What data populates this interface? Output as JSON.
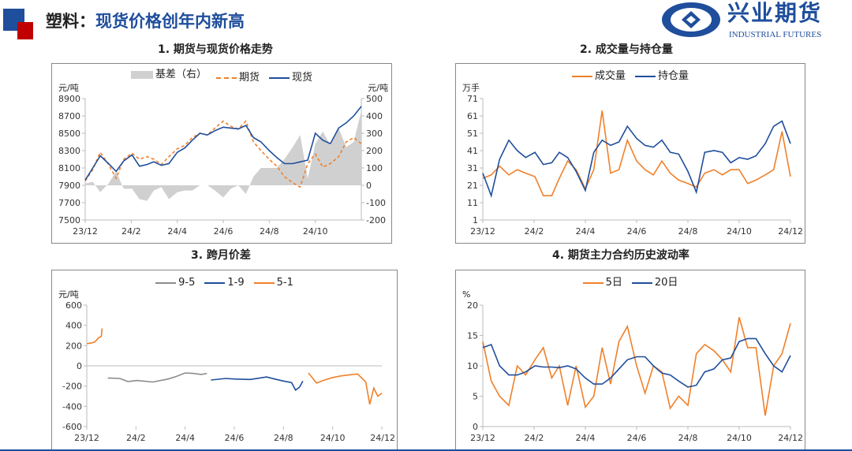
{
  "header": {
    "title_prefix": "塑料：",
    "title_main": "现货价格创年内新高"
  },
  "logo": {
    "cn": "兴业期货",
    "en": "INDUSTRIAL FUTURES",
    "color": "#1f4e9c"
  },
  "chart_data": [
    {
      "id": "c1",
      "type": "line",
      "title": "1. 期货与现货价格走势",
      "ylabel": "元/吨",
      "y2label": "元/吨",
      "ylim": [
        7500,
        8900
      ],
      "yticks": [
        7500,
        7700,
        7900,
        8100,
        8300,
        8500,
        8700,
        8900
      ],
      "y2lim": [
        -200,
        500
      ],
      "y2ticks": [
        -200,
        -100,
        0,
        100,
        200,
        300,
        400,
        500
      ],
      "xlim": [
        "2023-12-01",
        "2024-12-01"
      ],
      "xticks": [
        "23/12",
        "24/2",
        "24/4",
        "24/6",
        "24/8",
        "24/10"
      ],
      "x": [
        "2023-12-01",
        "2023-12-11",
        "2023-12-21",
        "2024-01-01",
        "2024-01-11",
        "2024-01-21",
        "2024-02-01",
        "2024-02-11",
        "2024-02-21",
        "2024-03-01",
        "2024-03-11",
        "2024-03-21",
        "2024-04-01",
        "2024-04-11",
        "2024-04-21",
        "2024-05-01",
        "2024-05-11",
        "2024-05-21",
        "2024-06-01",
        "2024-06-11",
        "2024-06-21",
        "2024-07-01",
        "2024-07-11",
        "2024-07-21",
        "2024-08-01",
        "2024-08-11",
        "2024-08-21",
        "2024-09-01",
        "2024-09-11",
        "2024-09-21",
        "2024-10-01",
        "2024-10-11",
        "2024-10-21",
        "2024-11-01",
        "2024-11-11",
        "2024-11-21",
        "2024-12-01"
      ],
      "series": [
        {
          "name": "基差（右）",
          "kind": "area",
          "axis": "right",
          "color": "#d0d0d0",
          "values": [
            10,
            20,
            -40,
            10,
            80,
            -20,
            -20,
            -80,
            -90,
            -30,
            -10,
            -80,
            -40,
            -30,
            -30,
            0,
            0,
            -30,
            -70,
            -20,
            0,
            -50,
            50,
            100,
            100,
            100,
            150,
            220,
            290,
            40,
            240,
            310,
            230,
            330,
            220,
            250,
            430
          ]
        },
        {
          "name": "期货",
          "kind": "dash",
          "axis": "left",
          "color": "#f0802a",
          "values": [
            7950,
            8080,
            8280,
            8140,
            7980,
            8200,
            8270,
            8200,
            8230,
            8200,
            8140,
            8230,
            8320,
            8360,
            8450,
            8500,
            8480,
            8560,
            8640,
            8580,
            8550,
            8640,
            8400,
            8300,
            8200,
            8120,
            8000,
            7930,
            7880,
            8150,
            8260,
            8110,
            8150,
            8230,
            8400,
            8450,
            8380
          ]
        },
        {
          "name": "现货",
          "kind": "line",
          "axis": "left",
          "color": "#1f4e9c",
          "values": [
            7960,
            8100,
            8240,
            8150,
            8060,
            8180,
            8250,
            8120,
            8140,
            8170,
            8130,
            8150,
            8280,
            8330,
            8420,
            8500,
            8480,
            8530,
            8570,
            8560,
            8550,
            8590,
            8450,
            8400,
            8300,
            8220,
            8150,
            8150,
            8170,
            8190,
            8500,
            8420,
            8380,
            8560,
            8620,
            8700,
            8810
          ]
        }
      ]
    },
    {
      "id": "c2",
      "type": "line",
      "title": "2. 成交量与持仓量",
      "ylabel": "万手",
      "ylim": [
        1,
        71
      ],
      "yticks": [
        1,
        11,
        21,
        31,
        41,
        51,
        61,
        71
      ],
      "xlim": [
        "2023-12-01",
        "2024-12-01"
      ],
      "xticks": [
        "23/12",
        "24/2",
        "24/4",
        "24/6",
        "24/8",
        "24/10",
        "24/12"
      ],
      "x": [
        "2023-12-01",
        "2023-12-11",
        "2023-12-21",
        "2024-01-01",
        "2024-01-11",
        "2024-01-21",
        "2024-02-01",
        "2024-02-11",
        "2024-02-21",
        "2024-03-01",
        "2024-03-11",
        "2024-03-21",
        "2024-04-01",
        "2024-04-11",
        "2024-04-21",
        "2024-05-01",
        "2024-05-11",
        "2024-05-21",
        "2024-06-01",
        "2024-06-11",
        "2024-06-21",
        "2024-07-01",
        "2024-07-11",
        "2024-07-21",
        "2024-08-01",
        "2024-08-11",
        "2024-08-21",
        "2024-09-01",
        "2024-09-11",
        "2024-09-21",
        "2024-10-01",
        "2024-10-11",
        "2024-10-21",
        "2024-11-01",
        "2024-11-11",
        "2024-11-21",
        "2024-12-01"
      ],
      "series": [
        {
          "name": "成交量",
          "kind": "line",
          "color": "#f0802a",
          "values": [
            25,
            27,
            32,
            27,
            30,
            28,
            26,
            15,
            15,
            25,
            35,
            30,
            19,
            30,
            64,
            28,
            30,
            47,
            35,
            30,
            27,
            35,
            28,
            24,
            22,
            20,
            28,
            30,
            27,
            30,
            30,
            22,
            24,
            27,
            30,
            52,
            26
          ]
        },
        {
          "name": "持仓量",
          "kind": "line",
          "color": "#1f4e9c",
          "values": [
            28,
            15,
            36,
            47,
            41,
            37,
            40,
            33,
            34,
            40,
            37,
            29,
            18,
            40,
            47,
            44,
            46,
            55,
            48,
            44,
            43,
            47,
            40,
            39,
            29,
            17,
            40,
            41,
            40,
            34,
            37,
            36,
            38,
            45,
            55,
            58,
            45
          ]
        }
      ]
    },
    {
      "id": "c3",
      "type": "line",
      "title": "3. 跨月价差",
      "ylabel": "元/吨",
      "ylim": [
        -600,
        600
      ],
      "yticks": [
        -600,
        -400,
        -200,
        0,
        200,
        400,
        600
      ],
      "xlim": [
        "2023-12-01",
        "2024-12-01"
      ],
      "xticks": [
        "23/12",
        "24/2",
        "24/4",
        "24/6",
        "24/8",
        "24/10",
        "24/12"
      ],
      "legend": [
        {
          "name": "9-5",
          "color": "#8c8c8c"
        },
        {
          "name": "1-9",
          "color": "#1f4e9c"
        },
        {
          "name": "5-1",
          "color": "#f0802a"
        }
      ],
      "series": [
        {
          "name": "5-1",
          "color": "#f0802a",
          "x": [
            "2023-12-01",
            "2023-12-06",
            "2023-12-11",
            "2023-12-16",
            "2023-12-19",
            "2023-12-20"
          ],
          "values": [
            220,
            225,
            235,
            280,
            290,
            370
          ]
        },
        {
          "name": "9-5",
          "color": "#8c8c8c",
          "x": [
            "2023-12-27",
            "2024-01-11",
            "2024-01-21",
            "2024-02-01",
            "2024-02-21",
            "2024-03-11",
            "2024-03-21",
            "2024-04-01",
            "2024-04-11",
            "2024-04-21",
            "2024-04-28"
          ],
          "values": [
            -120,
            -125,
            -155,
            -145,
            -160,
            -130,
            -105,
            -70,
            -75,
            -85,
            -75
          ]
        },
        {
          "name": "1-9",
          "color": "#1f4e9c",
          "x": [
            "2024-05-03",
            "2024-05-21",
            "2024-06-01",
            "2024-06-21",
            "2024-07-11",
            "2024-07-21",
            "2024-08-01",
            "2024-08-11",
            "2024-08-16",
            "2024-08-21",
            "2024-08-25"
          ],
          "values": [
            -140,
            -125,
            -130,
            -135,
            -110,
            -130,
            -150,
            -165,
            -240,
            -210,
            -150
          ]
        },
        {
          "name": "5-1",
          "color": "#f0802a",
          "x": [
            "2024-09-01",
            "2024-09-11",
            "2024-09-21",
            "2024-10-01",
            "2024-10-11",
            "2024-10-21",
            "2024-11-01",
            "2024-11-11",
            "2024-11-16",
            "2024-11-21",
            "2024-11-26",
            "2024-12-01"
          ],
          "values": [
            -70,
            -170,
            -140,
            -115,
            -100,
            -90,
            -80,
            -160,
            -380,
            -220,
            -300,
            -270
          ]
        }
      ]
    },
    {
      "id": "c4",
      "type": "line",
      "title": "4. 期货主力合约历史波动率",
      "ylabel": "%",
      "ylim": [
        0,
        20
      ],
      "yticks": [
        0,
        5,
        10,
        15,
        20
      ],
      "xlim": [
        "2023-12-01",
        "2024-12-01"
      ],
      "xticks": [
        "23/12",
        "24/2",
        "24/4",
        "24/6",
        "24/8",
        "24/10",
        "24/12"
      ],
      "x": [
        "2023-12-01",
        "2023-12-11",
        "2023-12-21",
        "2024-01-01",
        "2024-01-11",
        "2024-01-21",
        "2024-02-01",
        "2024-02-11",
        "2024-02-21",
        "2024-03-01",
        "2024-03-11",
        "2024-03-21",
        "2024-04-01",
        "2024-04-11",
        "2024-04-21",
        "2024-05-01",
        "2024-05-11",
        "2024-05-21",
        "2024-06-01",
        "2024-06-11",
        "2024-06-21",
        "2024-07-01",
        "2024-07-11",
        "2024-07-21",
        "2024-08-01",
        "2024-08-11",
        "2024-08-21",
        "2024-09-01",
        "2024-09-11",
        "2024-09-21",
        "2024-10-01",
        "2024-10-11",
        "2024-10-21",
        "2024-11-01",
        "2024-11-11",
        "2024-11-21",
        "2024-12-01"
      ],
      "series": [
        {
          "name": "5日",
          "color": "#f0802a",
          "values": [
            14,
            7.5,
            5,
            3.5,
            10,
            8.5,
            11,
            13,
            8,
            10,
            3.5,
            10,
            3.2,
            5,
            13,
            7,
            14,
            16.5,
            10,
            5.5,
            10,
            9,
            3,
            5,
            3.5,
            12,
            13.5,
            12.5,
            11,
            9,
            18,
            13,
            13,
            1.8,
            10,
            12,
            17
          ]
        },
        {
          "name": "20日",
          "color": "#1f4e9c",
          "values": [
            13,
            13.5,
            10,
            8.5,
            8.5,
            9,
            10,
            9.8,
            9.8,
            9.7,
            10,
            9.5,
            8,
            7,
            7,
            8,
            9.5,
            11,
            11.5,
            11.5,
            10,
            8.8,
            8.5,
            7.5,
            6.5,
            6.8,
            9,
            9.5,
            11,
            11.3,
            14,
            14.5,
            14.5,
            12,
            10,
            9,
            11.7
          ]
        }
      ]
    }
  ]
}
